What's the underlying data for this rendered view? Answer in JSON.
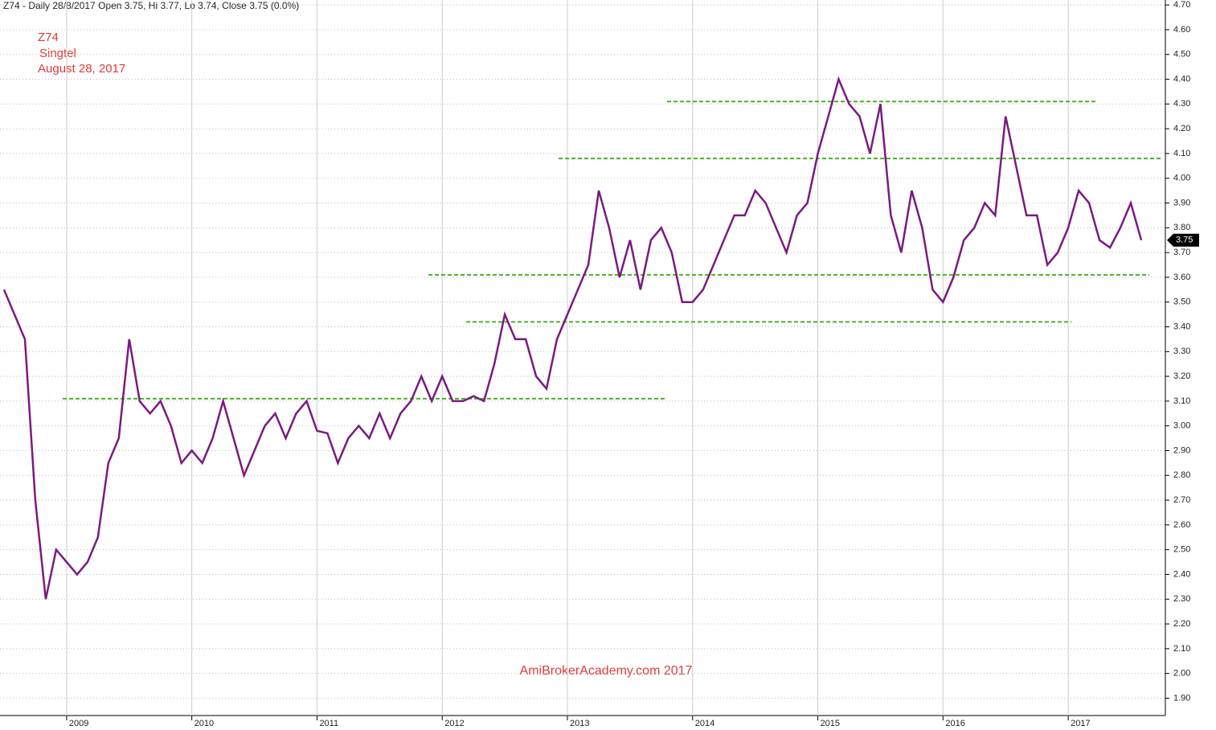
{
  "chart_data": {
    "type": "line",
    "title": "Z74 - Daily 28/8/2017 Open 3.75, Hi 3.77, Lo 3.74, Close 3.75 (0.0%)",
    "annotations": [
      "Z74",
      "Singtel",
      "August 28, 2017"
    ],
    "watermark": "AmiBrokerAcademy.com  2017",
    "categories": [
      null,
      null,
      null,
      null,
      null,
      null,
      "2009",
      null,
      null,
      null,
      null,
      null,
      null,
      null,
      null,
      null,
      null,
      null,
      "2010",
      null,
      null,
      null,
      null,
      null,
      null,
      null,
      null,
      null,
      null,
      null,
      "2011",
      null,
      null,
      null,
      null,
      null,
      null,
      null,
      null,
      null,
      null,
      null,
      "2012",
      null,
      null,
      null,
      null,
      null,
      null,
      null,
      null,
      null,
      null,
      null,
      "2013",
      null,
      null,
      null,
      null,
      null,
      null,
      null,
      null,
      null,
      null,
      null,
      "2014",
      null,
      null,
      null,
      null,
      null,
      null,
      null,
      null,
      null,
      null,
      null,
      "2015",
      null,
      null,
      null,
      null,
      null,
      null,
      null,
      null,
      null,
      null,
      null,
      "2016",
      null,
      null,
      null,
      null,
      null,
      null,
      null,
      null,
      null,
      null,
      null,
      "2017",
      null,
      null,
      null,
      null,
      null,
      null,
      null
    ],
    "series": [
      {
        "name": "Z74",
        "color": "#7a1a80",
        "values": [
          3.55,
          3.45,
          3.35,
          2.7,
          2.3,
          2.5,
          2.45,
          2.4,
          2.45,
          2.55,
          2.85,
          2.95,
          3.35,
          3.1,
          3.05,
          3.1,
          3.0,
          2.85,
          2.9,
          2.85,
          2.95,
          3.1,
          2.95,
          2.8,
          2.9,
          3.0,
          3.05,
          2.95,
          3.05,
          3.1,
          2.98,
          2.97,
          2.85,
          2.95,
          3.0,
          2.95,
          3.05,
          2.95,
          3.05,
          3.1,
          3.2,
          3.1,
          3.2,
          3.1,
          3.1,
          3.12,
          3.1,
          3.25,
          3.45,
          3.35,
          3.35,
          3.2,
          3.15,
          3.35,
          3.45,
          3.55,
          3.65,
          3.95,
          3.8,
          3.6,
          3.75,
          3.55,
          3.75,
          3.8,
          3.7,
          3.5,
          3.5,
          3.55,
          3.65,
          3.75,
          3.85,
          3.85,
          3.95,
          3.9,
          3.8,
          3.7,
          3.85,
          3.9,
          4.1,
          4.25,
          4.4,
          4.3,
          4.25,
          4.1,
          4.3,
          3.85,
          3.7,
          3.95,
          3.8,
          3.55,
          3.5,
          3.6,
          3.75,
          3.8,
          3.9,
          3.85,
          4.25,
          4.05,
          3.85,
          3.85,
          3.65,
          3.7,
          3.8,
          3.95,
          3.9,
          3.75,
          3.72,
          3.8,
          3.9,
          3.75
        ]
      }
    ],
    "last_price": 3.75,
    "levels": [
      3.11,
      3.42,
      3.61,
      4.08,
      4.31
    ],
    "level_color": "#4caf2a",
    "ylim": [
      1.83,
      4.72
    ],
    "yticks": [
      {
        "value": 1.9,
        "label": "1.90"
      },
      {
        "value": 2.0,
        "label": "2.00"
      },
      {
        "value": 2.1,
        "label": "2.10"
      },
      {
        "value": 2.2,
        "label": "2.20"
      },
      {
        "value": 2.3,
        "label": "2.30"
      },
      {
        "value": 2.4,
        "label": "2.40"
      },
      {
        "value": 2.5,
        "label": "2.50"
      },
      {
        "value": 2.6,
        "label": "2.60"
      },
      {
        "value": 2.7,
        "label": "2.70"
      },
      {
        "value": 2.8,
        "label": "2.80"
      },
      {
        "value": 2.9,
        "label": "2.90"
      },
      {
        "value": 3.0,
        "label": "3.00"
      },
      {
        "value": 3.1,
        "label": "3.10"
      },
      {
        "value": 3.2,
        "label": "3.20"
      },
      {
        "value": 3.3,
        "label": "3.30"
      },
      {
        "value": 3.4,
        "label": "3.40"
      },
      {
        "value": 3.5,
        "label": "3.50"
      },
      {
        "value": 3.6,
        "label": "3.60"
      },
      {
        "value": 3.7,
        "label": "3.70"
      },
      {
        "value": 3.8,
        "label": "3.80"
      },
      {
        "value": 3.9,
        "label": "3.90"
      },
      {
        "value": 4.0,
        "label": "4.00"
      },
      {
        "value": 4.1,
        "label": "4.10"
      },
      {
        "value": 4.2,
        "label": "4.20"
      },
      {
        "value": 4.3,
        "label": "4.30"
      },
      {
        "value": 4.4,
        "label": "4.40"
      },
      {
        "value": 4.5,
        "label": "4.50"
      },
      {
        "value": 4.6,
        "label": "4.60"
      },
      {
        "value": 4.7,
        "label": "4.70"
      }
    ],
    "grid": true
  }
}
